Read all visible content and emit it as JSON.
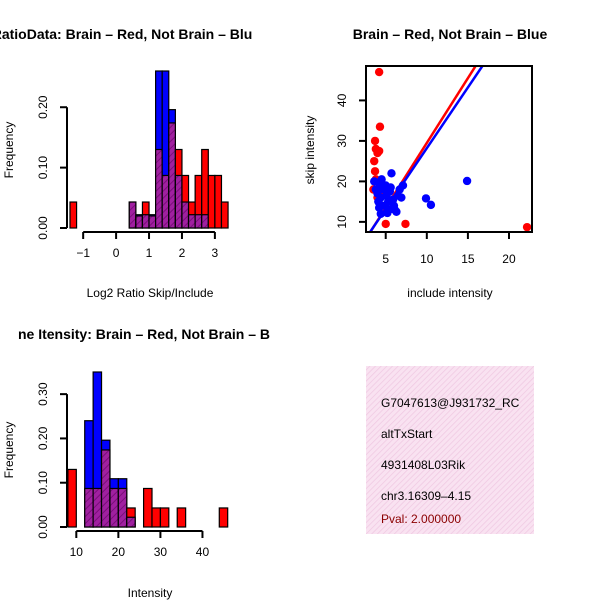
{
  "colors": {
    "red": "#ff0000",
    "blue": "#0000ff",
    "overlap": "#a020a0",
    "info_bg": "#f6dcee",
    "pval": "#8b0000",
    "axis": "#000000"
  },
  "chart_data": [
    {
      "type": "bar",
      "variant": "overlaid-histogram",
      "title": "RatioData: Brain – Red, Not Brain – Blu",
      "xlabel": "Log2 Ratio Skip/Include",
      "ylabel": "Frequency",
      "xlim": [
        -1.4,
        3.55
      ],
      "ylim": [
        0,
        0.26
      ],
      "xticks": [
        -1,
        0,
        1,
        2,
        3
      ],
      "xtick_labels": [
        "−1",
        "0",
        "1",
        "2",
        "3"
      ],
      "yticks": [
        0,
        0.1,
        0.2
      ],
      "ytick_labels": [
        "0.00",
        "0.10",
        "0.20"
      ],
      "bin_width": 0.2,
      "series": [
        {
          "name": "Brain",
          "color": "red",
          "bin_starts": [
            -1.4,
            0.4,
            0.6,
            0.8,
            1.0,
            1.2,
            1.4,
            1.6,
            1.8,
            2.0,
            2.2,
            2.4,
            2.6,
            2.8,
            3.0,
            3.2
          ],
          "values": [
            0.043,
            0.043,
            0.02,
            0.043,
            0.02,
            0.13,
            0.087,
            0.174,
            0.13,
            0.087,
            0.043,
            0.087,
            0.13,
            0.087,
            0.087,
            0.043
          ]
        },
        {
          "name": "Not Brain",
          "color": "blue",
          "bin_starts": [
            0.4,
            0.6,
            0.8,
            1.0,
            1.2,
            1.4,
            1.6,
            1.8,
            2.0,
            2.2,
            2.4,
            2.6
          ],
          "values": [
            0.043,
            0.022,
            0.022,
            0.022,
            0.26,
            0.26,
            0.196,
            0.087,
            0.043,
            0.022,
            0.022,
            0.022
          ]
        }
      ]
    },
    {
      "type": "scatter",
      "title": "Brain – Red, Not Brain – Blue",
      "xlabel": "include intensity",
      "ylabel": "skip intensity",
      "xlim": [
        2.6,
        22.8
      ],
      "ylim": [
        7.5,
        48.5
      ],
      "xticks": [
        5,
        10,
        15,
        20
      ],
      "yticks": [
        10,
        20,
        30,
        40
      ],
      "series": [
        {
          "name": "Brain",
          "color": "red",
          "points": [
            [
              4.2,
              47
            ],
            [
              4.3,
              33.5
            ],
            [
              3.7,
              30
            ],
            [
              3.8,
              28
            ],
            [
              4.0,
              27
            ],
            [
              4.2,
              27.5
            ],
            [
              3.6,
              25
            ],
            [
              3.7,
              22.5
            ],
            [
              3.5,
              18
            ],
            [
              3.8,
              20.5
            ],
            [
              4.0,
              16
            ],
            [
              4.6,
              17.5
            ],
            [
              5.0,
              9.5
            ],
            [
              7.4,
              9.5
            ],
            [
              22.2,
              8.7
            ]
          ]
        },
        {
          "name": "Not Brain",
          "color": "blue",
          "points": [
            [
              3.6,
              20
            ],
            [
              3.8,
              18
            ],
            [
              4.0,
              17
            ],
            [
              4.1,
              15
            ],
            [
              4.2,
              13.5
            ],
            [
              4.3,
              19
            ],
            [
              4.4,
              16
            ],
            [
              4.5,
              20.5
            ],
            [
              4.6,
              14
            ],
            [
              4.8,
              18
            ],
            [
              5.0,
              19
            ],
            [
              5.1,
              16.5
            ],
            [
              5.3,
              15
            ],
            [
              5.4,
              13
            ],
            [
              5.5,
              17.5
            ],
            [
              5.6,
              18.5
            ],
            [
              5.7,
              22
            ],
            [
              5.9,
              15.5
            ],
            [
              6.0,
              14
            ],
            [
              6.1,
              13
            ],
            [
              6.3,
              12.5
            ],
            [
              6.5,
              16.5
            ],
            [
              6.7,
              18
            ],
            [
              6.9,
              16
            ],
            [
              7.1,
              19
            ],
            [
              9.9,
              15.8
            ],
            [
              10.5,
              14.2
            ],
            [
              14.9,
              20.1
            ],
            [
              4.4,
              12
            ],
            [
              5.2,
              12.2
            ]
          ]
        }
      ],
      "fit_lines": [
        {
          "name": "Brain fit",
          "color": "red",
          "intercept": -2.5,
          "slope": 3.2
        },
        {
          "name": "Not Brain fit",
          "color": "blue",
          "intercept": -1.8,
          "slope": 3.0
        }
      ]
    },
    {
      "type": "bar",
      "variant": "overlaid-histogram",
      "title": "ne Itensity: Brain – Red, Not Brain – B",
      "xlabel": "Intensity",
      "ylabel": "Frequency",
      "xlim": [
        8.5,
        47.5
      ],
      "ylim": [
        0,
        0.35
      ],
      "xticks": [
        10,
        20,
        30,
        40
      ],
      "yticks": [
        0,
        0.1,
        0.2,
        0.3
      ],
      "ytick_labels": [
        "0.00",
        "0.10",
        "0.20",
        "0.30"
      ],
      "bin_width": 2,
      "series": [
        {
          "name": "Brain",
          "color": "red",
          "bin_starts": [
            8,
            12,
            14,
            16,
            18,
            20,
            22,
            26,
            28,
            30,
            34,
            44
          ],
          "values": [
            0.13,
            0.087,
            0.087,
            0.174,
            0.087,
            0.087,
            0.043,
            0.087,
            0.043,
            0.043,
            0.043,
            0.043
          ]
        },
        {
          "name": "Not Brain",
          "color": "blue",
          "bin_starts": [
            12,
            14,
            16,
            18,
            20,
            22
          ],
          "values": [
            0.24,
            0.35,
            0.196,
            0.109,
            0.109,
            0.022
          ]
        }
      ]
    }
  ],
  "info_panel": {
    "event_id": "G7047613@J931732_RC",
    "event_type": "altTxStart",
    "gene": "4931408L03Rik",
    "location": "chr3.16309–4.15",
    "pval": "Pval: 2.000000"
  }
}
